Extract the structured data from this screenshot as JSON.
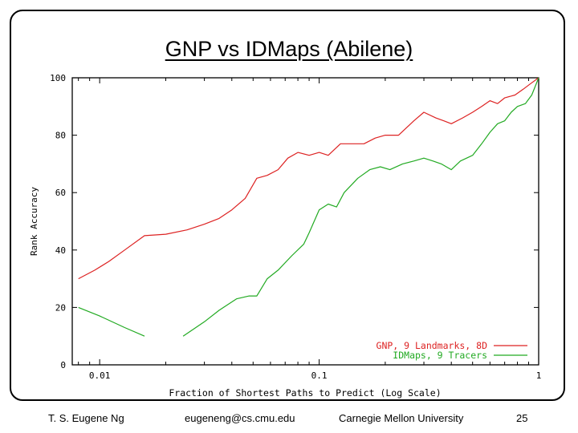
{
  "slide": {
    "title": "GNP vs IDMaps (Abilene)",
    "footer": {
      "author": "T. S. Eugene Ng",
      "email": "eugeneng@cs.cmu.edu",
      "institution": "Carnegie Mellon University",
      "page_number": "25"
    }
  },
  "chart_data": {
    "type": "line",
    "title": "",
    "xlabel": "Fraction of Shortest Paths to Predict (Log Scale)",
    "ylabel": "Rank Accuracy",
    "xscale": "log",
    "xlim": [
      0.0075,
      1
    ],
    "ylim": [
      0,
      100
    ],
    "xticks": [
      {
        "value": 0.01,
        "label": "0.01"
      },
      {
        "value": 0.1,
        "label": "0.1"
      },
      {
        "value": 1,
        "label": "1"
      }
    ],
    "yticks": [
      {
        "value": 0,
        "label": "0"
      },
      {
        "value": 20,
        "label": "20"
      },
      {
        "value": 40,
        "label": "40"
      },
      {
        "value": 60,
        "label": "60"
      },
      {
        "value": 80,
        "label": "80"
      },
      {
        "value": 100,
        "label": "100"
      }
    ],
    "legend_position": "bottom-right",
    "grid": false,
    "series": [
      {
        "name": "GNP, 9 Landmarks, 8D",
        "color": "#dd2222",
        "points": [
          [
            0.008,
            30
          ],
          [
            0.0095,
            33
          ],
          [
            0.011,
            36
          ],
          [
            0.013,
            40
          ],
          [
            0.016,
            45
          ],
          [
            0.02,
            45.5
          ],
          [
            0.025,
            47
          ],
          [
            0.03,
            49
          ],
          [
            0.035,
            51
          ],
          [
            0.04,
            54
          ],
          [
            0.046,
            58
          ],
          [
            0.052,
            65
          ],
          [
            0.058,
            66
          ],
          [
            0.065,
            68
          ],
          [
            0.072,
            72
          ],
          [
            0.08,
            74
          ],
          [
            0.09,
            73
          ],
          [
            0.1,
            74
          ],
          [
            0.11,
            73
          ],
          [
            0.125,
            77
          ],
          [
            0.14,
            77
          ],
          [
            0.16,
            77
          ],
          [
            0.18,
            79
          ],
          [
            0.2,
            80
          ],
          [
            0.23,
            80
          ],
          [
            0.27,
            85
          ],
          [
            0.3,
            88
          ],
          [
            0.34,
            86
          ],
          [
            0.37,
            85
          ],
          [
            0.4,
            84
          ],
          [
            0.45,
            86
          ],
          [
            0.5,
            88
          ],
          [
            0.55,
            90
          ],
          [
            0.6,
            92
          ],
          [
            0.65,
            91
          ],
          [
            0.7,
            93
          ],
          [
            0.78,
            94
          ],
          [
            0.85,
            96
          ],
          [
            0.92,
            98
          ],
          [
            1,
            100
          ]
        ]
      },
      {
        "name": "IDMaps, 9 Tracers",
        "color": "#22aa22",
        "points": [
          [
            0.008,
            20
          ],
          [
            0.01,
            17
          ],
          [
            0.013,
            13
          ],
          [
            0.016,
            10
          ],
          null,
          [
            0.024,
            10
          ],
          [
            0.03,
            15
          ],
          [
            0.035,
            19
          ],
          [
            0.042,
            23
          ],
          [
            0.048,
            24
          ],
          [
            0.052,
            24
          ],
          [
            0.058,
            30
          ],
          [
            0.065,
            33
          ],
          [
            0.075,
            38
          ],
          [
            0.085,
            42
          ],
          [
            0.09,
            46
          ],
          [
            0.1,
            54
          ],
          [
            0.11,
            56
          ],
          [
            0.12,
            55
          ],
          [
            0.13,
            60
          ],
          [
            0.15,
            65
          ],
          [
            0.17,
            68
          ],
          [
            0.19,
            69
          ],
          [
            0.21,
            68
          ],
          [
            0.24,
            70
          ],
          [
            0.27,
            71
          ],
          [
            0.3,
            72
          ],
          [
            0.33,
            71
          ],
          [
            0.36,
            70
          ],
          [
            0.4,
            68
          ],
          [
            0.44,
            71
          ],
          [
            0.5,
            73
          ],
          [
            0.55,
            77
          ],
          [
            0.6,
            81
          ],
          [
            0.65,
            84
          ],
          [
            0.7,
            85
          ],
          [
            0.75,
            88
          ],
          [
            0.8,
            90
          ],
          [
            0.87,
            91
          ],
          [
            0.93,
            94
          ],
          [
            1,
            100
          ]
        ]
      }
    ]
  }
}
